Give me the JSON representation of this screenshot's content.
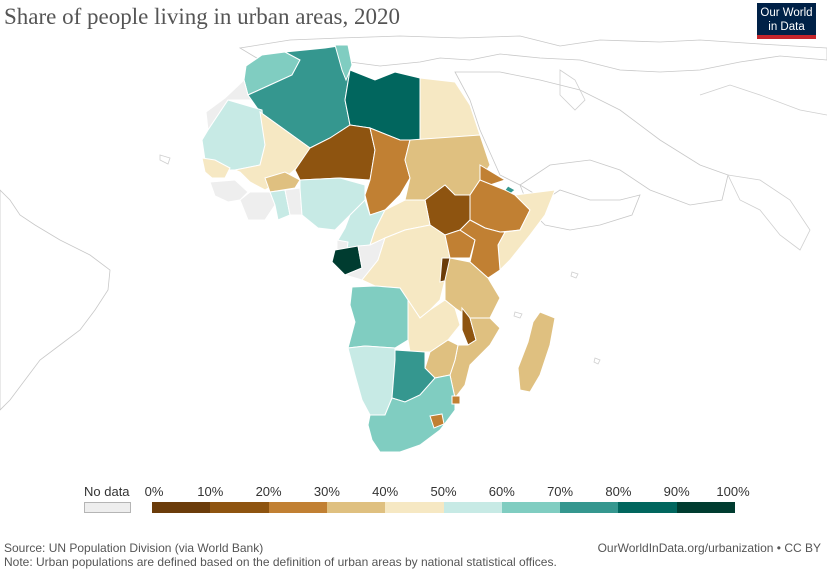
{
  "header": {
    "title": "Share of people living in urban areas, 2020",
    "logo_line1": "Our World",
    "logo_line2": "in Data"
  },
  "legend": {
    "no_data_label": "No data",
    "no_data_color": "#eeeeee",
    "ticks": [
      "0%",
      "10%",
      "20%",
      "30%",
      "40%",
      "50%",
      "60%",
      "70%",
      "80%",
      "90%",
      "100%"
    ],
    "bins": [
      {
        "range": "0-10%",
        "color": "#6b3c0a"
      },
      {
        "range": "10-20%",
        "color": "#8e5410"
      },
      {
        "range": "20-30%",
        "color": "#c18033"
      },
      {
        "range": "30-40%",
        "color": "#dfc080"
      },
      {
        "range": "40-50%",
        "color": "#f6e8c3"
      },
      {
        "range": "50-60%",
        "color": "#c7eae5"
      },
      {
        "range": "60-70%",
        "color": "#80cdc1"
      },
      {
        "range": "70-80%",
        "color": "#35978f"
      },
      {
        "range": "80-90%",
        "color": "#01665e"
      },
      {
        "range": "90-100%",
        "color": "#003c30"
      }
    ]
  },
  "footer": {
    "source": "Source: UN Population Division (via World Bank)",
    "note": "Note: Urban populations are defined based on the definition of urban areas by national statistical offices.",
    "url_license": "OurWorldInData.org/urbanization • CC BY"
  },
  "map_data": {
    "year": 2020,
    "countries": [
      {
        "name": "Morocco",
        "color": "#80cdc1"
      },
      {
        "name": "Algeria",
        "color": "#35978f"
      },
      {
        "name": "Tunisia",
        "color": "#80cdc1"
      },
      {
        "name": "Libya",
        "color": "#01665e"
      },
      {
        "name": "Egypt",
        "color": "#f6e8c3"
      },
      {
        "name": "Western Sahara",
        "color": "#eeeeee"
      },
      {
        "name": "Mauritania",
        "color": "#c7eae5"
      },
      {
        "name": "Mali",
        "color": "#f6e8c3"
      },
      {
        "name": "Niger",
        "color": "#8e5410"
      },
      {
        "name": "Chad",
        "color": "#c18033"
      },
      {
        "name": "Sudan",
        "color": "#dfc080"
      },
      {
        "name": "South Sudan",
        "color": "#8e5410"
      },
      {
        "name": "Eritrea",
        "color": "#c18033"
      },
      {
        "name": "Djibouti",
        "color": "#35978f"
      },
      {
        "name": "Ethiopia",
        "color": "#c18033"
      },
      {
        "name": "Somalia",
        "color": "#f6e8c3"
      },
      {
        "name": "Senegal",
        "color": "#f6e8c3"
      },
      {
        "name": "Burkina Faso",
        "color": "#dfc080"
      },
      {
        "name": "Nigeria",
        "color": "#c7eae5"
      },
      {
        "name": "Ghana",
        "color": "#c7eae5"
      },
      {
        "name": "Central African Republic",
        "color": "#f6e8c3"
      },
      {
        "name": "Cameroon",
        "color": "#c7eae5"
      },
      {
        "name": "Gabon",
        "color": "#003c30"
      },
      {
        "name": "Republic of the Congo",
        "color": "#80cdc1"
      },
      {
        "name": "DR Congo",
        "color": "#f6e8c3"
      },
      {
        "name": "Uganda",
        "color": "#c18033"
      },
      {
        "name": "Kenya",
        "color": "#c18033"
      },
      {
        "name": "Rwanda",
        "color": "#6b3c0a"
      },
      {
        "name": "Tanzania",
        "color": "#dfc080"
      },
      {
        "name": "Angola",
        "color": "#80cdc1"
      },
      {
        "name": "Zambia",
        "color": "#f6e8c3"
      },
      {
        "name": "Malawi",
        "color": "#8e5410"
      },
      {
        "name": "Mozambique",
        "color": "#dfc080"
      },
      {
        "name": "Zimbabwe",
        "color": "#dfc080"
      },
      {
        "name": "Namibia",
        "color": "#c7eae5"
      },
      {
        "name": "Botswana",
        "color": "#35978f"
      },
      {
        "name": "South Africa",
        "color": "#80cdc1"
      },
      {
        "name": "Lesotho",
        "color": "#c18033"
      },
      {
        "name": "Eswatini",
        "color": "#c18033"
      },
      {
        "name": "Madagascar",
        "color": "#dfc080"
      }
    ]
  }
}
